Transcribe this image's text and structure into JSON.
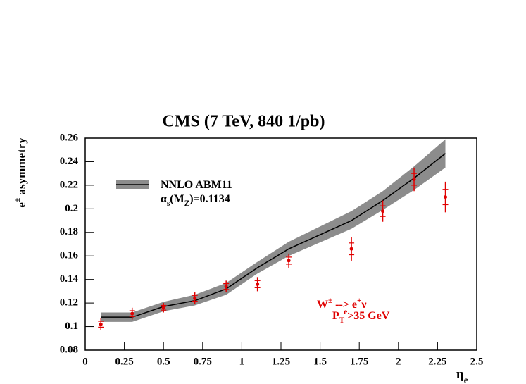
{
  "chart_data": {
    "type": "line",
    "title": "CMS (7 TeV, 840 1/pb)",
    "xlabel": [
      {
        "text": "η"
      },
      {
        "text": "e",
        "sub": true
      }
    ],
    "ylabel": [
      {
        "text": "e"
      },
      {
        "text": "±",
        "sup": true
      },
      {
        "text": " asymmetry"
      }
    ],
    "xlim": [
      0,
      2.5
    ],
    "ylim": [
      0.08,
      0.26
    ],
    "xticks": [
      0,
      0.25,
      0.5,
      0.75,
      1,
      1.25,
      1.5,
      1.75,
      2,
      2.25,
      2.5
    ],
    "yticks": [
      0.08,
      0.1,
      0.12,
      0.14,
      0.16,
      0.18,
      0.2,
      0.22,
      0.24,
      0.26
    ],
    "x": [
      0.1,
      0.3,
      0.5,
      0.7,
      0.9,
      1.1,
      1.3,
      1.7,
      1.9,
      2.1,
      2.3
    ],
    "theory": {
      "name": [
        [
          {
            "text": "NNLO ABM11"
          }
        ],
        [
          {
            "text": "α"
          },
          {
            "text": "s",
            "sub": true
          },
          {
            "text": "(M"
          },
          {
            "text": "Z",
            "sub": true
          },
          {
            "text": ")=0.1134"
          }
        ]
      ],
      "color": "#000000",
      "band_color": "#8c8c8c",
      "values": [
        0.108,
        0.108,
        0.117,
        0.122,
        0.132,
        0.15,
        0.166,
        0.19,
        0.207,
        0.226,
        0.247
      ],
      "lower": [
        0.104,
        0.104,
        0.113,
        0.118,
        0.127,
        0.145,
        0.16,
        0.183,
        0.199,
        0.216,
        0.235
      ],
      "upper": [
        0.112,
        0.112,
        0.121,
        0.127,
        0.137,
        0.155,
        0.172,
        0.198,
        0.215,
        0.236,
        0.259
      ]
    },
    "data": {
      "color": "#e00000",
      "values": [
        0.102,
        0.111,
        0.116,
        0.124,
        0.134,
        0.136,
        0.156,
        0.166,
        0.198,
        0.225,
        0.21
      ],
      "errors": [
        0.005,
        0.005,
        0.004,
        0.005,
        0.005,
        0.006,
        0.006,
        0.01,
        0.009,
        0.01,
        0.013
      ]
    },
    "annotation": {
      "color": "#e00000",
      "lines": [
        [
          {
            "text": "W"
          },
          {
            "text": "±",
            "sup": true
          },
          {
            "text": " --> e"
          },
          {
            "text": "+",
            "sup": true
          },
          {
            "text": "ν"
          }
        ],
        [
          {
            "text": "P"
          },
          {
            "text": "T",
            "sub": true
          },
          {
            "text": "e",
            "sup": true
          },
          {
            "text": ">35 GeV"
          }
        ]
      ]
    }
  }
}
